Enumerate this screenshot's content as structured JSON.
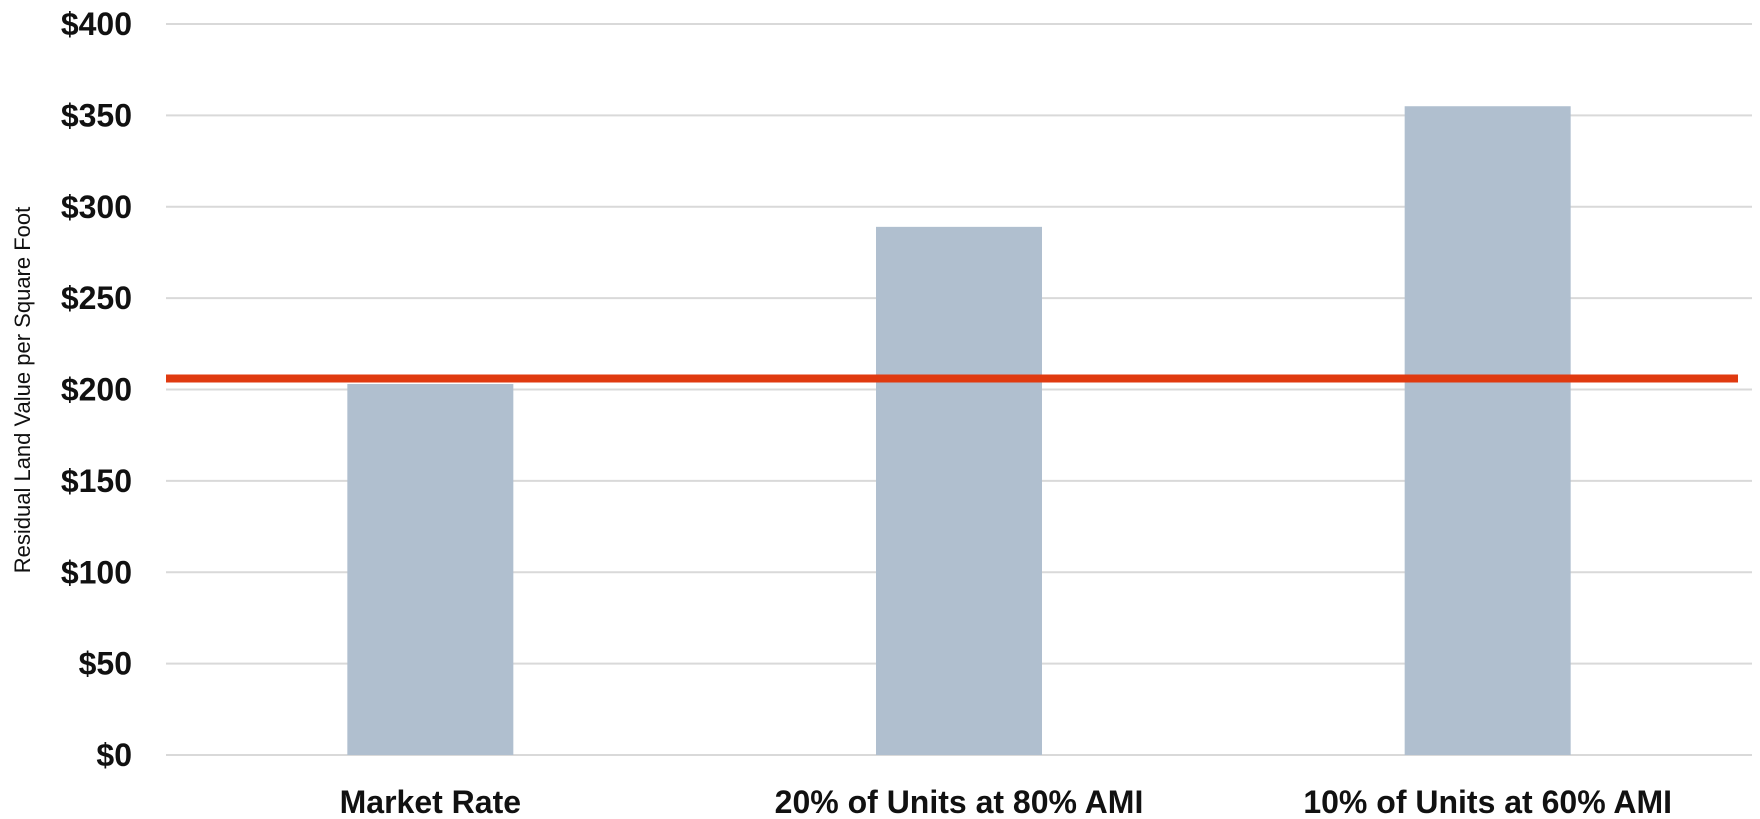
{
  "chart_data": {
    "type": "bar",
    "title": "",
    "xlabel": "",
    "ylabel": "Residual Land Value per Square Foot",
    "categories": [
      "Market Rate",
      "20% of Units at 80% AMI",
      "10% of Units at 60% AMI"
    ],
    "values": [
      203,
      289,
      355
    ],
    "ylim": [
      0,
      400
    ],
    "ytick_values": [
      0,
      50,
      100,
      150,
      200,
      250,
      300,
      350,
      400
    ],
    "ytick_labels": [
      "$0",
      "$50",
      "$100",
      "$150",
      "$200",
      "$250",
      "$300",
      "$350",
      "$400"
    ],
    "reference_line": {
      "value": 206
    },
    "grid": true,
    "legend": "none",
    "colors": {
      "bar": "#b0bfcf",
      "reference_line": "#e03a10",
      "grid": "#d9d9d9",
      "text": "#111111"
    }
  }
}
